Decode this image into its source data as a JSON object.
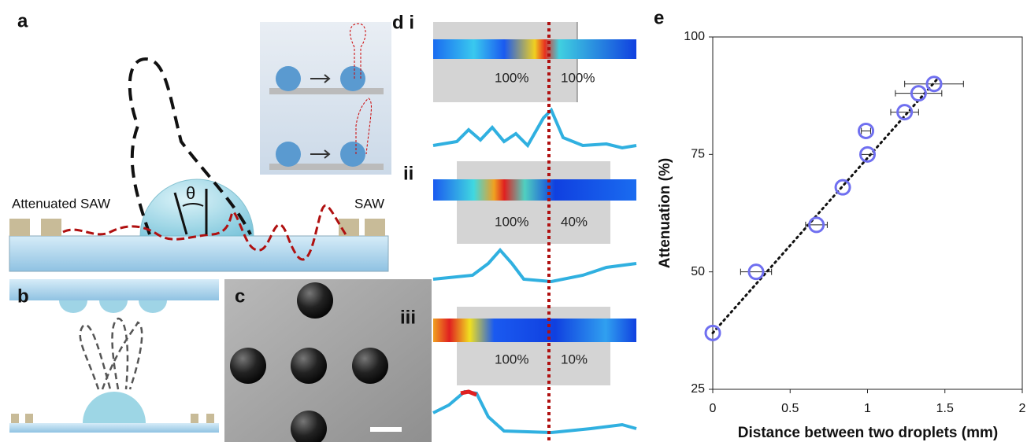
{
  "panels": {
    "a": {
      "label": "a",
      "left_label": "Attenuated SAW",
      "right_label": "SAW",
      "angle": "θ"
    },
    "b": {
      "label": "b"
    },
    "c": {
      "label": "c"
    },
    "d": {
      "label": "d i",
      "rows": [
        {
          "label": null,
          "left": "100%",
          "right": "100%"
        },
        {
          "label": "ii",
          "left": "100%",
          "right": "40%"
        },
        {
          "label": "iii",
          "left": "100%",
          "right": "10%"
        }
      ]
    }
  },
  "chart_data": {
    "type": "scatter",
    "panel_label": "e",
    "xlabel": "Distance between two droplets (mm)",
    "ylabel": "Attenuation (%)",
    "x": [
      0,
      0.28,
      0.67,
      0.84,
      0.99,
      1.0,
      1.24,
      1.33,
      1.43
    ],
    "values": [
      37,
      50,
      60,
      68,
      80,
      75,
      84,
      88,
      90
    ],
    "x_errors": [
      null,
      0.1,
      0.07,
      null,
      0.03,
      0.04,
      0.09,
      0.15,
      0.19
    ],
    "color": "#6f6ff0",
    "trendline": {
      "x": [
        0,
        1.45
      ],
      "values": [
        37,
        91
      ]
    },
    "xlim": [
      0,
      2
    ],
    "ylim": [
      25,
      100
    ],
    "xticks": [
      0,
      0.5,
      1,
      1.5,
      2
    ],
    "yticks": [
      25,
      50,
      75,
      100
    ]
  }
}
